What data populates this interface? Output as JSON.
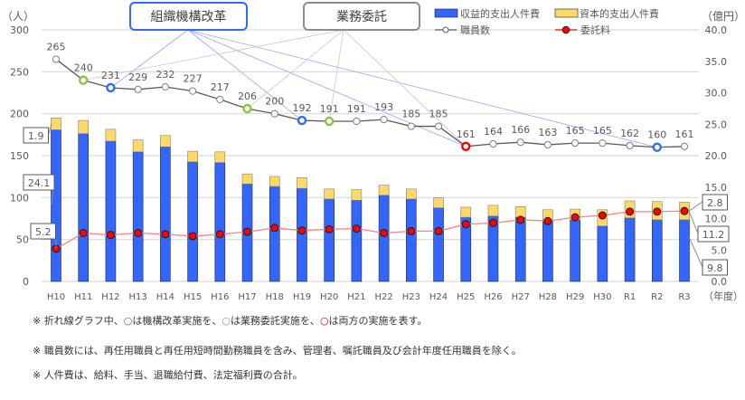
{
  "chart_data": {
    "type": "bar+line",
    "title": "",
    "left_axis": {
      "label": "（人）",
      "min": 0,
      "max": 300,
      "ticks": [
        0,
        50,
        100,
        150,
        200,
        250,
        300
      ]
    },
    "right_axis": {
      "label": "（億円）",
      "min": 0,
      "max": 40,
      "ticks": [
        "0.0",
        "5.0",
        "10.0",
        "15.0",
        "20.0",
        "25.0",
        "30.0",
        "35.0",
        "40.0"
      ]
    },
    "xlabel": "（年度）",
    "categories": [
      "H10",
      "H11",
      "H12",
      "H13",
      "H14",
      "H15",
      "H16",
      "H17",
      "H18",
      "H19",
      "H20",
      "H21",
      "H22",
      "H23",
      "H24",
      "H25",
      "H26",
      "H27",
      "H28",
      "H29",
      "H30",
      "R1",
      "R2",
      "R3"
    ],
    "series": [
      {
        "name": "収益的支出人件費",
        "type": "bar-stacked",
        "axis": "right",
        "color": "#3366ff",
        "values": [
          24.1,
          23.5,
          22.3,
          20.6,
          21.4,
          19.0,
          18.9,
          15.5,
          15.1,
          14.8,
          13.1,
          12.9,
          13.7,
          13.1,
          11.7,
          10.2,
          10.4,
          10.2,
          9.8,
          9.8,
          8.8,
          10.1,
          9.8,
          9.8
        ]
      },
      {
        "name": "資本的支出人件費",
        "type": "bar-stacked",
        "axis": "right",
        "color": "#ffd966",
        "values": [
          1.9,
          2.1,
          1.9,
          1.9,
          1.8,
          1.7,
          1.7,
          1.6,
          1.6,
          1.7,
          1.6,
          1.7,
          1.6,
          1.6,
          1.6,
          1.6,
          1.7,
          1.7,
          1.6,
          1.7,
          2.6,
          2.7,
          2.9,
          2.8
        ]
      },
      {
        "name": "職員数",
        "type": "line",
        "axis": "left",
        "color": "#595959",
        "values": [
          265,
          240,
          231,
          229,
          232,
          227,
          217,
          206,
          200,
          192,
          191,
          191,
          193,
          185,
          185,
          161,
          164,
          166,
          163,
          165,
          165,
          162,
          160,
          161
        ],
        "marker_types": [
          "none",
          "outsourcing",
          "reform",
          "none",
          "none",
          "none",
          "none",
          "outsourcing",
          "none",
          "reform",
          "outsourcing",
          "none",
          "none",
          "none",
          "none",
          "both",
          "none",
          "none",
          "none",
          "none",
          "none",
          "none",
          "reform",
          "none"
        ]
      },
      {
        "name": "委託料",
        "type": "line",
        "axis": "right",
        "color": "#ff0000",
        "values": [
          5.2,
          7.7,
          7.4,
          7.7,
          7.5,
          7.2,
          7.5,
          7.9,
          8.5,
          8.1,
          8.3,
          8.4,
          7.7,
          8.0,
          8.0,
          9.1,
          9.3,
          9.8,
          9.6,
          10.2,
          10.5,
          11.1,
          11.1,
          11.2
        ]
      }
    ],
    "annotations": [
      {
        "text": "1.9",
        "target": "H10 資本的支出人件費"
      },
      {
        "text": "24.1",
        "target": "H10 収益的支出人件費"
      },
      {
        "text": "5.2",
        "target": "H10 委託料"
      },
      {
        "text": "2.8",
        "target": "R3 資本的支出人件費"
      },
      {
        "text": "11.2",
        "target": "R3 委託料"
      },
      {
        "text": "9.8",
        "target": "R3 収益的支出人件費"
      }
    ],
    "callouts": [
      {
        "label": "組織機構改革",
        "color": "#2f6bff",
        "points": [
          "H12",
          "H19",
          "R2",
          "H25"
        ]
      },
      {
        "label": "業務委託",
        "color": "#8c8c8c",
        "points": [
          "H11",
          "H17",
          "H20",
          "H25"
        ]
      }
    ],
    "legend": {
      "position": "top-right",
      "items": [
        {
          "label": "収益的支出人件費",
          "kind": "bar",
          "color": "#3366ff"
        },
        {
          "label": "資本的支出人件費",
          "kind": "bar",
          "color": "#ffd966"
        },
        {
          "label": "職員数",
          "kind": "line-hollow",
          "color": "#595959"
        },
        {
          "label": "委託料",
          "kind": "line-dot",
          "color": "#ff0000"
        }
      ]
    },
    "grid": true,
    "marker_colors": {
      "reform": "#2f6bff",
      "outsourcing": "#8fbf4a",
      "both": "#ff0000",
      "none": "#7f7f7f"
    }
  },
  "notes": {
    "line1": {
      "prefix": "※ 折れ線グラフ中、",
      "c1": "○",
      "t1": "は機構改革実施を、",
      "c2": "○",
      "t2": "は業務委託実施を、",
      "c3": "○",
      "t3": "は両方の実施を表す。"
    },
    "line2": "※ 職員数には、再任用職員と再任用短時間勤務職員を含み、管理者、嘱託職員及び会計年度任用職員を除く。",
    "line3": "※ 人件費は、給料、手当、退職給付費、法定福利費の合計。"
  }
}
